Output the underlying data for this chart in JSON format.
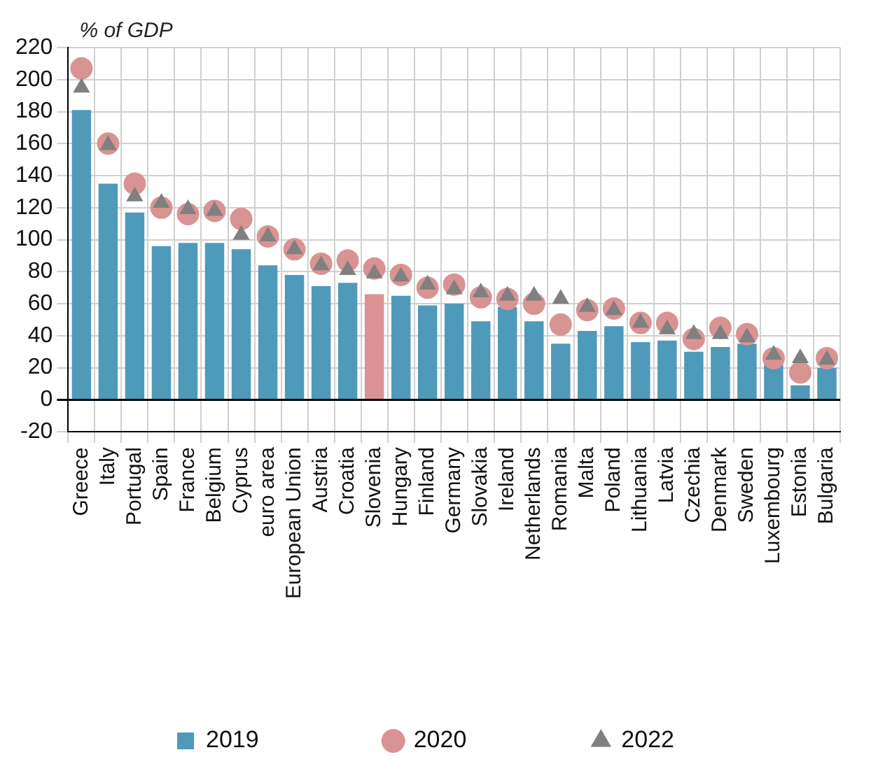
{
  "chart_data": {
    "type": "bar",
    "ylabel": "% of GDP",
    "categories": [
      "Greece",
      "Italy",
      "Portugal",
      "Spain",
      "France",
      "Belgium",
      "Cyprus",
      "euro area",
      "European Union",
      "Austria",
      "Croatia",
      "Slovenia",
      "Hungary",
      "Finland",
      "Germany",
      "Slovakia",
      "Ireland",
      "Netherlands",
      "Romania",
      "Malta",
      "Poland",
      "Lithuania",
      "Latvia",
      "Czechia",
      "Denmark",
      "Sweden",
      "Luxembourg",
      "Estonia",
      "Bulgaria"
    ],
    "series": [
      {
        "name": "2019",
        "color": "#4f9aba",
        "colors": [
          "#4f9aba",
          "#4f9aba",
          "#4f9aba",
          "#4f9aba",
          "#4f9aba",
          "#4f9aba",
          "#4f9aba",
          "#4f9aba",
          "#4f9aba",
          "#4f9aba",
          "#4f9aba",
          "#d99393",
          "#4f9aba",
          "#4f9aba",
          "#4f9aba",
          "#4f9aba",
          "#4f9aba",
          "#4f9aba",
          "#4f9aba",
          "#4f9aba",
          "#4f9aba",
          "#4f9aba",
          "#4f9aba",
          "#4f9aba",
          "#4f9aba",
          "#4f9aba",
          "#4f9aba",
          "#4f9aba",
          "#4f9aba"
        ],
        "values": [
          181,
          135,
          117,
          96,
          98,
          98,
          94,
          84,
          78,
          71,
          73,
          66,
          65,
          59,
          60,
          49,
          58,
          49,
          35,
          43,
          46,
          36,
          37,
          30,
          33,
          35,
          22,
          9,
          20
        ]
      },
      {
        "name": "2020",
        "type": "scatter",
        "marker": "circle",
        "color": "#d99393",
        "x": [
          "Greece",
          "Italy",
          "Portugal",
          "Spain",
          "France",
          "Belgium",
          "Cyprus",
          "euro area",
          "European Union",
          "Austria",
          "Croatia",
          "Slovenia",
          "Hungary",
          "Finland",
          "Germany",
          "Slovakia",
          "Ireland",
          "Netherlands",
          "Romania",
          "Malta",
          "Poland",
          "Lithuania",
          "Latvia",
          "Czechia",
          "Denmark",
          "Sweden",
          "Luxembourg",
          "Estonia",
          "Bulgaria"
        ],
        "values": [
          207,
          160,
          135,
          120,
          116,
          118,
          113,
          102,
          94,
          85,
          87,
          82,
          78,
          70,
          72,
          64,
          63,
          60,
          47,
          56,
          57,
          48,
          48,
          38,
          45,
          41,
          26,
          17,
          26
        ]
      },
      {
        "name": "2022",
        "type": "scatter",
        "marker": "triangle",
        "color": "#808080",
        "x": [
          "Greece",
          "Italy",
          "Portugal",
          "Spain",
          "France",
          "Belgium",
          "Cyprus",
          "euro area",
          "European Union",
          "Austria",
          "Croatia",
          "Slovenia",
          "Hungary",
          "Finland",
          "Germany",
          "Slovakia",
          "Ireland",
          "Netherlands",
          "Romania",
          "Malta",
          "Poland",
          "Lithuania",
          "Latvia",
          "Czechia",
          "Denmark",
          "Sweden",
          "Luxembourg",
          "Estonia",
          "Bulgaria"
        ],
        "values": [
          195,
          159,
          127,
          123,
          119,
          118,
          103,
          102,
          94,
          84,
          81,
          79,
          77,
          72,
          69,
          67,
          65,
          65,
          63,
          58,
          56,
          48,
          44,
          41,
          41,
          39,
          28,
          26,
          25
        ]
      }
    ],
    "ylim": [
      -20,
      220
    ],
    "yticks": [
      -20,
      0,
      20,
      40,
      60,
      80,
      100,
      120,
      140,
      160,
      180,
      200,
      220
    ],
    "grid": true,
    "legend": "bottom"
  }
}
